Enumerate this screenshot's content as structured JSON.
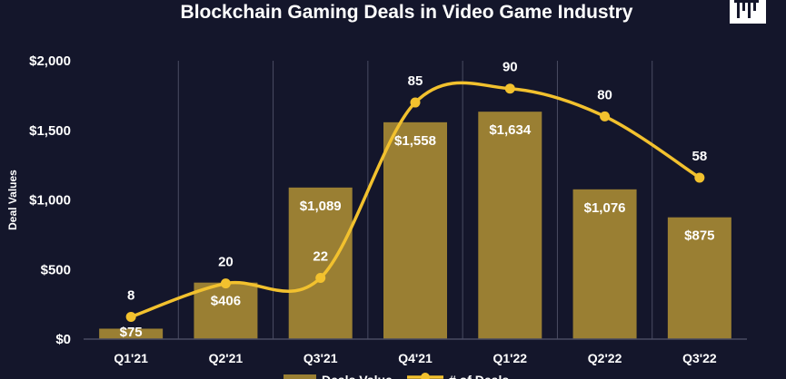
{
  "header": {
    "title": "Blockchain Gaming Deals in Video Game Industry"
  },
  "colors": {
    "background": "#14162b",
    "bar": "#9a7f33",
    "line": "#f2c12e",
    "text": "#ffffff",
    "grid": "#4a4c63"
  },
  "chart_data": {
    "type": "bar",
    "title": "Blockchain Gaming Deals in Video Game Industry",
    "ylabel": "Deal Values",
    "xlabel": "",
    "categories": [
      "Q1'21",
      "Q2'21",
      "Q3'21",
      "Q4'21",
      "Q1'22",
      "Q2'22",
      "Q3'22"
    ],
    "y_ticks": [
      "$0",
      "$500",
      "$1,000",
      "$1,500",
      "$2,000"
    ],
    "ylim": [
      0,
      2000
    ],
    "grid": "vertical separators between categories",
    "legend_position": "bottom",
    "series": [
      {
        "name": "Deals Value",
        "type": "bar",
        "axis": "left",
        "values": [
          75,
          406,
          1089,
          1558,
          1634,
          1076,
          875
        ],
        "labels": [
          "$75",
          "$406",
          "$1,089",
          "$1,558",
          "$1,634",
          "$1,076",
          "$875"
        ]
      },
      {
        "name": "# of Deals",
        "type": "line",
        "axis": "right",
        "smooth": true,
        "ylim": [
          0,
          100
        ],
        "values": [
          8,
          20,
          22,
          85,
          90,
          80,
          58
        ],
        "labels": [
          "8",
          "20",
          "22",
          "85",
          "90",
          "80",
          "58"
        ]
      }
    ]
  }
}
